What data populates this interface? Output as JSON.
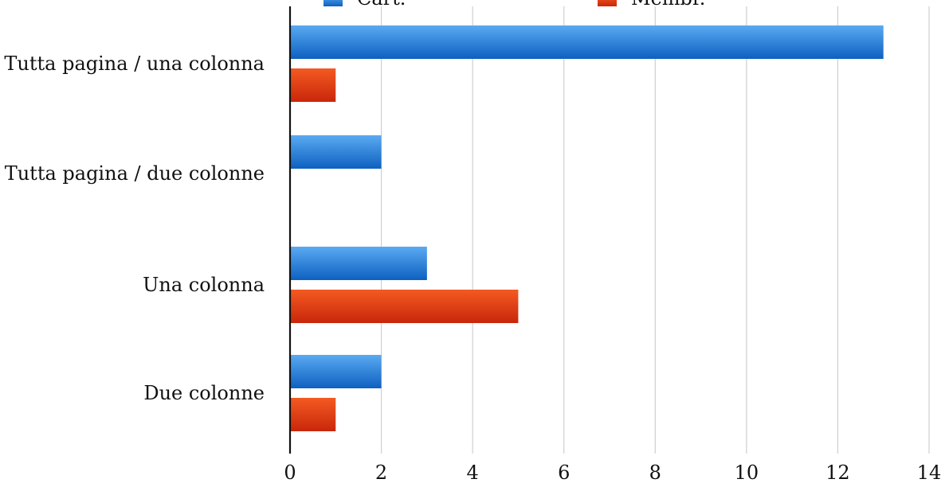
{
  "chart_data": {
    "type": "bar",
    "orientation": "horizontal",
    "categories": [
      "Tutta pagina / una colonna",
      "Tutta pagina / due colonne",
      "Una colonna",
      "Due colonne"
    ],
    "series": [
      {
        "name": "Cart.",
        "values": [
          13,
          2,
          3,
          2
        ],
        "color": "#1f77d4"
      },
      {
        "name": "Membr.",
        "values": [
          1,
          0,
          5,
          1
        ],
        "color": "#e03a10"
      }
    ],
    "xlim": [
      0,
      14
    ],
    "xticks": [
      "0",
      "2",
      "4",
      "6",
      "8",
      "10",
      "12",
      "14"
    ],
    "grid": true,
    "legend_position": "top"
  }
}
